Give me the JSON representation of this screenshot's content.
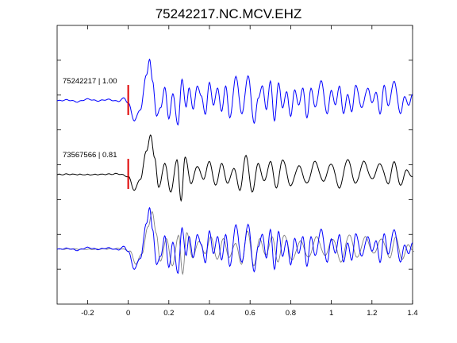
{
  "chart_data": {
    "type": "line",
    "title": "75242217.NC.MCV.EHZ",
    "xlim": [
      -0.35,
      1.4
    ],
    "x_ticks": [
      -0.2,
      0,
      0.2,
      0.4,
      0.6,
      0.8,
      1,
      1.2,
      1.4
    ],
    "x_tick_labels": [
      "-0.2",
      "0",
      "0.2",
      "0.4",
      "0.6",
      "0.8",
      "1",
      "1.2",
      "1.4"
    ],
    "y_tick_count": 7,
    "grid": false,
    "pick_marker": {
      "time": 0,
      "color": "#e00000"
    },
    "traces": [
      {
        "label": "75242217 | 1.00",
        "color": "#0000ff",
        "has_pick": true
      },
      {
        "label": "73567566 | 0.81",
        "color": "#000000",
        "has_pick": true
      },
      {
        "label": "",
        "color": "#0000ff",
        "has_pick": false,
        "overlay_color": "#808080"
      }
    ],
    "waveform_keypoints": {
      "t": [
        -0.35,
        -0.3,
        -0.25,
        -0.2,
        -0.15,
        -0.1,
        -0.05,
        -0.02,
        0.0,
        0.03,
        0.06,
        0.09,
        0.105,
        0.12,
        0.14,
        0.16,
        0.18,
        0.2,
        0.22,
        0.245,
        0.265,
        0.285,
        0.3,
        0.32,
        0.34,
        0.36,
        0.38,
        0.4,
        0.42,
        0.44,
        0.46,
        0.48,
        0.5,
        0.53,
        0.56,
        0.59,
        0.62,
        0.64,
        0.66,
        0.68,
        0.7,
        0.72,
        0.74,
        0.76,
        0.78,
        0.8,
        0.82,
        0.84,
        0.86,
        0.88,
        0.9,
        0.92,
        0.95,
        0.98,
        1.0,
        1.02,
        1.04,
        1.06,
        1.08,
        1.1,
        1.12,
        1.15,
        1.18,
        1.2,
        1.22,
        1.24,
        1.26,
        1.28,
        1.31,
        1.34,
        1.36,
        1.38,
        1.4
      ],
      "amp": [
        0.0,
        0.02,
        -0.02,
        0.04,
        0.0,
        0.03,
        -0.01,
        0.06,
        -0.05,
        -0.45,
        -0.2,
        0.6,
        0.95,
        0.45,
        -0.35,
        -0.15,
        0.3,
        -0.4,
        0.15,
        -0.55,
        0.5,
        -0.15,
        0.3,
        -0.2,
        0.35,
        0.1,
        -0.3,
        0.42,
        -0.1,
        0.3,
        -0.25,
        0.35,
        -0.4,
        0.55,
        -0.3,
        0.58,
        -0.5,
        0.05,
        0.35,
        -0.2,
        0.45,
        -0.45,
        0.4,
        -0.15,
        0.2,
        -0.35,
        0.25,
        -0.1,
        0.3,
        -0.4,
        0.3,
        -0.15,
        0.45,
        -0.3,
        0.25,
        -0.1,
        0.35,
        -0.3,
        0.15,
        -0.25,
        0.35,
        -0.15,
        0.3,
        -0.05,
        0.2,
        -0.3,
        0.35,
        -0.1,
        0.45,
        -0.3,
        0.1,
        -0.1,
        0.15
      ]
    },
    "reference_keypoints": {
      "t": [
        -0.35,
        -0.3,
        -0.2,
        -0.1,
        -0.05,
        0.0,
        0.03,
        0.06,
        0.09,
        0.11,
        0.13,
        0.15,
        0.18,
        0.21,
        0.24,
        0.26,
        0.28,
        0.31,
        0.34,
        0.37,
        0.4,
        0.43,
        0.46,
        0.49,
        0.52,
        0.55,
        0.58,
        0.61,
        0.64,
        0.67,
        0.7,
        0.73,
        0.76,
        0.8,
        0.84,
        0.88,
        0.92,
        0.96,
        1.0,
        1.04,
        1.08,
        1.12,
        1.16,
        1.2,
        1.24,
        1.28,
        1.31,
        1.34,
        1.37,
        1.4
      ],
      "amp": [
        0.0,
        0.01,
        0.0,
        0.01,
        0.02,
        -0.04,
        -0.35,
        -0.1,
        0.55,
        0.9,
        0.4,
        -0.3,
        0.25,
        -0.4,
        0.35,
        -0.6,
        0.4,
        -0.2,
        0.2,
        -0.1,
        0.3,
        -0.25,
        0.25,
        -0.2,
        0.15,
        -0.35,
        0.45,
        -0.4,
        0.25,
        -0.15,
        0.3,
        -0.3,
        0.35,
        -0.25,
        0.2,
        -0.2,
        0.3,
        -0.15,
        0.25,
        -0.3,
        0.35,
        -0.2,
        0.3,
        -0.1,
        0.25,
        -0.2,
        0.3,
        -0.25,
        0.1,
        -0.05
      ]
    }
  }
}
